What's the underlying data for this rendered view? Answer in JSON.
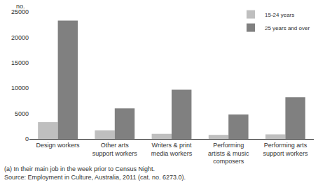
{
  "chart_data": {
    "type": "bar",
    "y_label": "no.",
    "categories": [
      "Design workers",
      "Other arts support workers",
      "Writers & print media workers",
      "Performing artists & music composers",
      "Performing arts support workers"
    ],
    "series": [
      {
        "name": "15-24 years",
        "color": "#bfbfbf",
        "values": [
          3300,
          1700,
          1000,
          800,
          900
        ]
      },
      {
        "name": "25 years and over",
        "color": "#808080",
        "values": [
          23300,
          6000,
          9700,
          4800,
          8200
        ]
      }
    ],
    "ylim": [
      0,
      25000
    ],
    "yticks": [
      0,
      5000,
      10000,
      15000,
      20000,
      25000
    ],
    "grid": true,
    "legend": "top-right",
    "notes": [
      "(a) In their main job in the week prior to Census Night.",
      "Source: Employment in Culture, Australia, 2011 (cat. no. 6273.0)."
    ]
  }
}
